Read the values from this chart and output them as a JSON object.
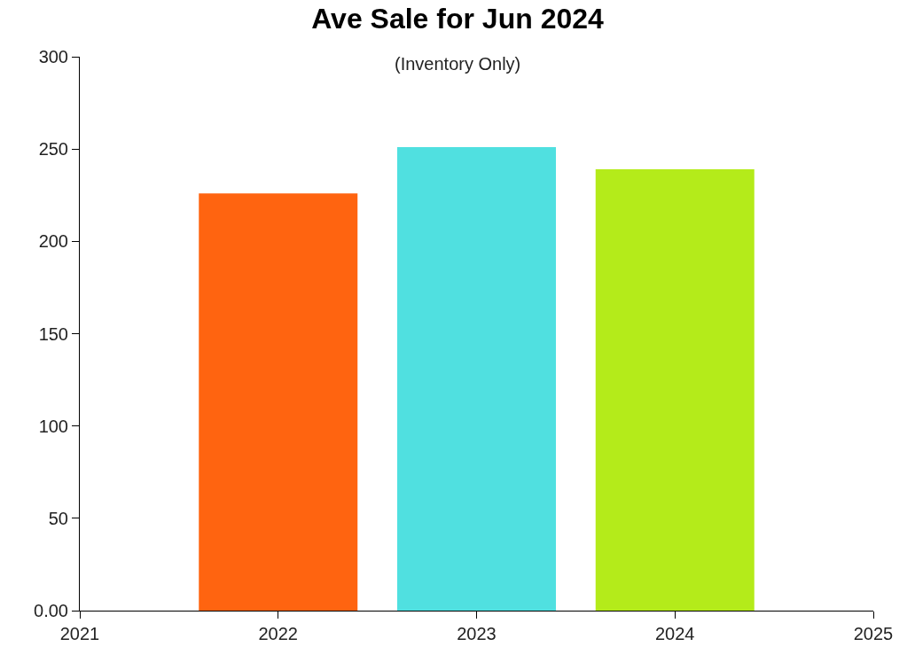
{
  "chart_data": {
    "type": "bar",
    "title": "Ave Sale for Jun 2024",
    "subtitle": "(Inventory Only)",
    "x": [
      2022,
      2023,
      2024
    ],
    "values": [
      226,
      251,
      239
    ],
    "colors": [
      "#ff6410",
      "#50e0e0",
      "#b4eb1a"
    ],
    "xlim": [
      2021,
      2025
    ],
    "xticks": [
      2021,
      2022,
      2023,
      2024,
      2025
    ],
    "ylim": [
      0,
      300
    ],
    "yticks": [
      {
        "value": 0,
        "label": "0.00"
      },
      50,
      100,
      150,
      200,
      250,
      300
    ],
    "grid": false
  }
}
